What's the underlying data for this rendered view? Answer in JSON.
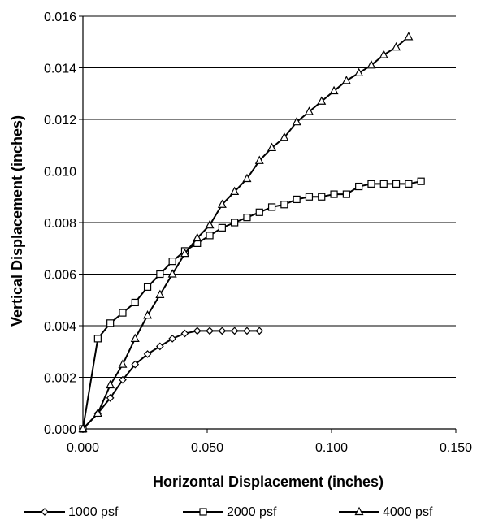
{
  "chart_data": {
    "type": "line",
    "title": "",
    "xlabel": "Horizontal Displacement (inches)",
    "ylabel": "Vertical Displacement (inches)",
    "xlim": [
      0,
      0.15
    ],
    "ylim": [
      0,
      0.016
    ],
    "x_ticks": [
      "0.000",
      "0.050",
      "0.100",
      "0.150"
    ],
    "y_ticks": [
      "0.000",
      "0.002",
      "0.004",
      "0.006",
      "0.008",
      "0.010",
      "0.012",
      "0.014",
      "0.016"
    ],
    "grid": "horizontal",
    "legend_position": "bottom",
    "series": [
      {
        "name": "1000 psf",
        "marker": "diamond",
        "x": [
          0.0,
          0.006,
          0.011,
          0.016,
          0.021,
          0.026,
          0.031,
          0.036,
          0.041,
          0.046,
          0.051,
          0.056,
          0.061,
          0.066,
          0.071
        ],
        "y": [
          0.0,
          0.0006,
          0.0012,
          0.0019,
          0.0025,
          0.0029,
          0.0032,
          0.0035,
          0.0037,
          0.0038,
          0.0038,
          0.0038,
          0.0038,
          0.0038,
          0.0038
        ]
      },
      {
        "name": "2000 psf",
        "marker": "square",
        "x": [
          0.0,
          0.006,
          0.011,
          0.016,
          0.021,
          0.026,
          0.031,
          0.036,
          0.041,
          0.046,
          0.051,
          0.056,
          0.061,
          0.066,
          0.071,
          0.076,
          0.081,
          0.086,
          0.091,
          0.096,
          0.101,
          0.106,
          0.111,
          0.116,
          0.121,
          0.126,
          0.131,
          0.136
        ],
        "y": [
          0.0,
          0.0035,
          0.0041,
          0.0045,
          0.0049,
          0.0055,
          0.006,
          0.0065,
          0.0069,
          0.0072,
          0.0075,
          0.0078,
          0.008,
          0.0082,
          0.0084,
          0.0086,
          0.0087,
          0.0089,
          0.009,
          0.009,
          0.0091,
          0.0091,
          0.0094,
          0.0095,
          0.0095,
          0.0095,
          0.0095,
          0.0096
        ]
      },
      {
        "name": "4000 psf",
        "marker": "triangle",
        "x": [
          0.0,
          0.006,
          0.011,
          0.016,
          0.021,
          0.026,
          0.031,
          0.036,
          0.041,
          0.046,
          0.051,
          0.056,
          0.061,
          0.066,
          0.071,
          0.076,
          0.081,
          0.086,
          0.091,
          0.096,
          0.101,
          0.106,
          0.111,
          0.116,
          0.121,
          0.126,
          0.131
        ],
        "y": [
          0.0,
          0.0006,
          0.0017,
          0.0025,
          0.0035,
          0.0044,
          0.0052,
          0.006,
          0.0068,
          0.0074,
          0.0079,
          0.0087,
          0.0092,
          0.0097,
          0.0104,
          0.0109,
          0.0113,
          0.0119,
          0.0123,
          0.0127,
          0.0131,
          0.0135,
          0.0138,
          0.0141,
          0.0145,
          0.0148,
          0.0152
        ]
      }
    ]
  }
}
